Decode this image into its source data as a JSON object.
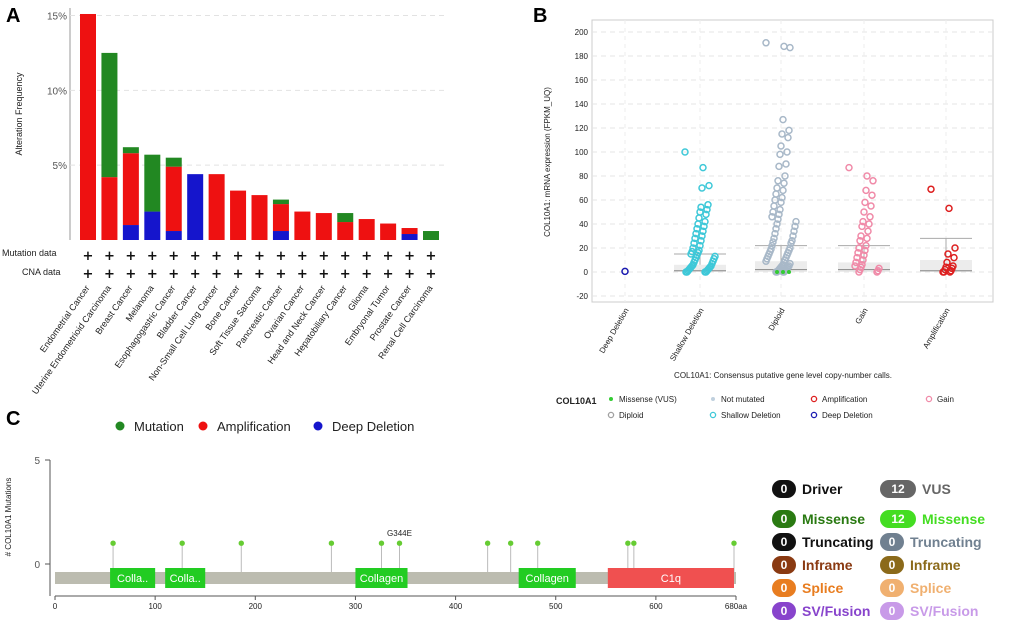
{
  "panel_labels": {
    "a": "A",
    "b": "B",
    "c": "C"
  },
  "chart_data": [
    {
      "type": "bar",
      "subtype": "stacked",
      "title": "",
      "ylabel": "Alteration Frequency",
      "yticks": [
        "5%",
        "10%",
        "15%"
      ],
      "ylim": [
        0,
        15.5
      ],
      "categories": [
        "Endometrial Cancer",
        "Uterine Endometrioid Carcinoma",
        "Breast Cancer",
        "Melanoma",
        "Esophagogastric Cancer",
        "Bladder Cancer",
        "Non-Small Cell Lung Cancer",
        "Bone Cancer",
        "Soft Tissue Sarcoma",
        "Pancreatic Cancer",
        "Ovarian Cancer",
        "Head and Neck Cancer",
        "Hepatobiliary Cancer",
        "Glioma",
        "Embryonal Tumor",
        "Prostate Cancer",
        "Renal Cell Carcinoma"
      ],
      "series": [
        {
          "name": "Deep Deletion",
          "color": "#1515cc",
          "values": [
            0,
            0,
            1.0,
            1.9,
            0.6,
            4.4,
            0,
            0,
            0,
            0.6,
            0,
            0,
            0,
            0,
            0,
            0.4,
            0
          ]
        },
        {
          "name": "Amplification",
          "color": "#ee1111",
          "values": [
            15.1,
            4.2,
            4.8,
            0,
            4.3,
            0,
            4.4,
            3.3,
            3.0,
            1.8,
            1.9,
            1.8,
            1.2,
            1.4,
            1.1,
            0.4,
            0
          ]
        },
        {
          "name": "Mutation",
          "color": "#228822",
          "values": [
            0,
            8.3,
            0.4,
            3.8,
            0.6,
            0,
            0,
            0,
            0,
            0.3,
            0,
            0,
            0.6,
            0,
            0,
            0,
            0.6
          ]
        }
      ],
      "row_labels": [
        "Mutation data",
        "CNA data"
      ],
      "row_marker": "+",
      "legend": [
        {
          "label": "Mutation",
          "color": "#228822"
        },
        {
          "label": "Amplification",
          "color": "#ee1111"
        },
        {
          "label": "Deep Deletion",
          "color": "#1515cc"
        }
      ]
    },
    {
      "type": "scatter",
      "subtype": "strip",
      "ylabel": "COL10A1: mRNA expression (FPKM_UQ)",
      "xlabel": "COL10A1: Consensus putative gene level copy-number calls.",
      "ylim": [
        -25,
        210
      ],
      "yticks": [
        -20,
        0,
        20,
        40,
        60,
        80,
        100,
        120,
        140,
        160,
        180,
        200
      ],
      "groups": [
        {
          "name": "Deep Deletion",
          "color": "#1a1ab0",
          "values": [
            0.5
          ],
          "median": 0,
          "q3": 0,
          "whisker": 0
        },
        {
          "name": "Shallow Deletion",
          "color": "#3ec8d8",
          "values": [
            100,
            87,
            72,
            70,
            56,
            54,
            52,
            50,
            48,
            45,
            42,
            40,
            38,
            36,
            34,
            32,
            30,
            28,
            26,
            24,
            22,
            20,
            18,
            17,
            16,
            15,
            14,
            13,
            12,
            11,
            10,
            9,
            8,
            7,
            6,
            5,
            5,
            4,
            4,
            3,
            3,
            2,
            2,
            1,
            1,
            0,
            0,
            0,
            0
          ],
          "median": 1,
          "q3": 6,
          "whisker": 15
        },
        {
          "name": "Diploid",
          "color": "#a8b8c8",
          "values": [
            191,
            188,
            187,
            127,
            118,
            115,
            112,
            105,
            100,
            98,
            90,
            88,
            80,
            76,
            74,
            70,
            68,
            65,
            62,
            60,
            58,
            55,
            52,
            50,
            48,
            46,
            44,
            42,
            40,
            38,
            36,
            34,
            32,
            30,
            28,
            26,
            25,
            24,
            22,
            20,
            19,
            18,
            17,
            16,
            15,
            14,
            13,
            12,
            11,
            10,
            9,
            8,
            7,
            6,
            5,
            5,
            4,
            4,
            3,
            3,
            2,
            2,
            1,
            1,
            0,
            0,
            0,
            0
          ],
          "median": 2,
          "q3": 9,
          "whisker": 22
        },
        {
          "name": "Gain",
          "color": "#f08aa8",
          "values": [
            87,
            80,
            76,
            68,
            64,
            58,
            55,
            50,
            46,
            42,
            40,
            38,
            34,
            30,
            28,
            26,
            22,
            20,
            18,
            16,
            14,
            12,
            10,
            8,
            6,
            5,
            4,
            3,
            2,
            1,
            0,
            0
          ],
          "median": 2,
          "q3": 8,
          "whisker": 22
        },
        {
          "name": "Amplification",
          "color": "#dd1f1f",
          "values": [
            69,
            53,
            20,
            15,
            12,
            8,
            5,
            4,
            3,
            2,
            1,
            0,
            0,
            0
          ],
          "median": 1,
          "q3": 10,
          "whisker": 28
        }
      ],
      "legend_title": "COL10A1",
      "legend": [
        {
          "label": "Missense (VUS)",
          "color": "#33cc33",
          "marker": "dot"
        },
        {
          "label": "Not mutated",
          "color": "#c0d0de",
          "marker": "dot"
        },
        {
          "label": "Amplification",
          "color": "#dd1f1f",
          "marker": "ring"
        },
        {
          "label": "Gain",
          "color": "#f08aa8",
          "marker": "ring"
        },
        {
          "label": "Diploid",
          "color": "#a0a0a0",
          "marker": "ring"
        },
        {
          "label": "Shallow Deletion",
          "color": "#3ec8d8",
          "marker": "ring"
        },
        {
          "label": "Deep Deletion",
          "color": "#1a1ab0",
          "marker": "ring"
        }
      ]
    },
    {
      "type": "lollipop",
      "ylabel": "# COL10A1 Mutations",
      "ylim": [
        0,
        5
      ],
      "yticks": [
        0,
        5
      ],
      "xlim": [
        0,
        680
      ],
      "xticks": [
        0,
        100,
        200,
        300,
        400,
        500,
        600
      ],
      "xtick_last": "680aa",
      "mutations": [
        58,
        127,
        186,
        276,
        326,
        344,
        432,
        455,
        482,
        572,
        578,
        678
      ],
      "mutation_counts": [
        1,
        1,
        1,
        1,
        1,
        1,
        1,
        1,
        1,
        1,
        1,
        1
      ],
      "annotation": {
        "label": "G344E",
        "position": 344
      },
      "domains": [
        {
          "label": "Colla..",
          "start": 55,
          "end": 100,
          "color": "#22cc22"
        },
        {
          "label": "Colla..",
          "start": 110,
          "end": 150,
          "color": "#22cc22"
        },
        {
          "label": "Collagen",
          "start": 300,
          "end": 352,
          "color": "#22cc22"
        },
        {
          "label": "Collagen",
          "start": 463,
          "end": 520,
          "color": "#22cc22"
        },
        {
          "label": "C1q",
          "start": 552,
          "end": 678,
          "color": "#f05050"
        }
      ],
      "mutation_legend": [
        {
          "count": "0",
          "label": "Driver",
          "badge": "#111111",
          "text": "#111111"
        },
        {
          "count": "12",
          "label": "VUS",
          "badge": "#666666",
          "text": "#666666"
        },
        {
          "count": "0",
          "label": "Missense",
          "badge": "#2a7a12",
          "text": "#2a7a12"
        },
        {
          "count": "12",
          "label": "Missense",
          "badge": "#44dd22",
          "text": "#44dd22"
        },
        {
          "count": "0",
          "label": "Truncating",
          "badge": "#111111",
          "text": "#111111"
        },
        {
          "count": "0",
          "label": "Truncating",
          "badge": "#708090",
          "text": "#708090"
        },
        {
          "count": "0",
          "label": "Inframe",
          "badge": "#8a3a12",
          "text": "#8a3a12"
        },
        {
          "count": "0",
          "label": "Inframe",
          "badge": "#8b6a1a",
          "text": "#8b6a1a"
        },
        {
          "count": "0",
          "label": "Splice",
          "badge": "#e87d20",
          "text": "#e87d20"
        },
        {
          "count": "0",
          "label": "Splice",
          "badge": "#f0b070",
          "text": "#f0b070"
        },
        {
          "count": "0",
          "label": "SV/Fusion",
          "badge": "#8844cc",
          "text": "#8844cc"
        },
        {
          "count": "0",
          "label": "SV/Fusion",
          "badge": "#c89ae8",
          "text": "#c89ae8"
        }
      ]
    }
  ]
}
